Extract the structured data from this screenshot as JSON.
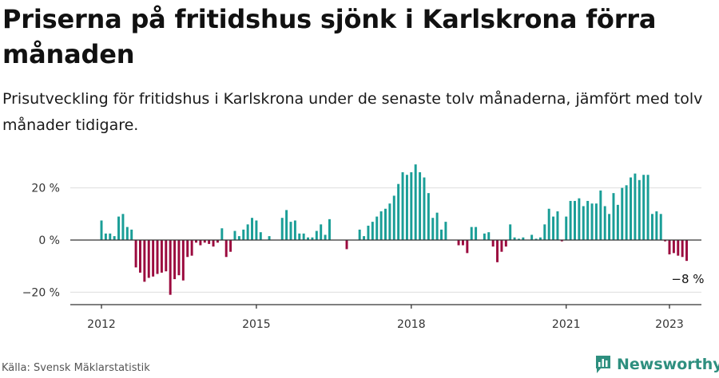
{
  "title": "Priserna på fritidshus sjönk i Karlskrona förra månaden",
  "subtitle": "Prisutveckling för fritidshus i Karlskrona under de senaste tolv månaderna, jämfört med tolv månader tidigare.",
  "source": "Källa: Svensk Mäklarstatistik",
  "brand": "Newsworthy",
  "colors": {
    "positive": "#1a9e97",
    "negative": "#9b0a3e",
    "brand": "#2e8f7f",
    "grid": "#dddddd",
    "axis": "#333333"
  },
  "chart_data": {
    "type": "bar",
    "ylim": [
      -23,
      33
    ],
    "yticks": [
      {
        "value": 20,
        "label": "20 %"
      },
      {
        "value": 0,
        "label": "0 %"
      },
      {
        "value": -20,
        "label": "−20 %"
      }
    ],
    "xticks": [
      {
        "label": "2012",
        "year": 2012
      },
      {
        "label": "2015",
        "year": 2015
      },
      {
        "label": "2018",
        "year": 2018
      },
      {
        "label": "2021",
        "year": 2021
      },
      {
        "label": "2023",
        "year": 2023
      }
    ],
    "start": "2012-01",
    "end": "2023-01",
    "values": [
      7.5,
      2.5,
      2.5,
      1.5,
      9,
      10,
      5,
      4,
      -10.5,
      -12.5,
      -16,
      -14.5,
      -14,
      -13,
      -12.5,
      -12,
      -21,
      -15,
      -13.5,
      -15.5,
      -6.5,
      -6,
      -1,
      -2,
      -1,
      -1.5,
      -2.5,
      -1,
      4.5,
      -6.5,
      -4.5,
      3.5,
      1.5,
      4,
      6,
      8.5,
      7.5,
      3,
      0,
      1.5,
      0,
      0,
      8.5,
      11.5,
      7,
      7.5,
      2.5,
      2.5,
      1,
      1,
      3.5,
      6,
      2,
      8,
      0,
      0,
      0,
      -3.5,
      0,
      0,
      4,
      1.5,
      5.5,
      7,
      9,
      11,
      12,
      14,
      17,
      21.5,
      26,
      25,
      26,
      29,
      26,
      24,
      18,
      8.5,
      10.5,
      4,
      7,
      0,
      0,
      -2,
      -2,
      -5,
      5,
      5,
      0,
      2.5,
      3,
      -2.5,
      -8.5,
      -4.5,
      -2.5,
      6,
      1,
      0.5,
      1,
      0,
      2,
      0.5,
      1,
      6,
      12,
      9,
      11,
      -0.5,
      9,
      15,
      15,
      16,
      13,
      15,
      14,
      14,
      19,
      13,
      10,
      18,
      13.5,
      20,
      21,
      24,
      25.5,
      23,
      25,
      25,
      10,
      11,
      10,
      -0.5,
      -5.5,
      -5,
      -6,
      -6.5,
      -8
    ],
    "last_label": "−8 %",
    "last_value": -8
  }
}
